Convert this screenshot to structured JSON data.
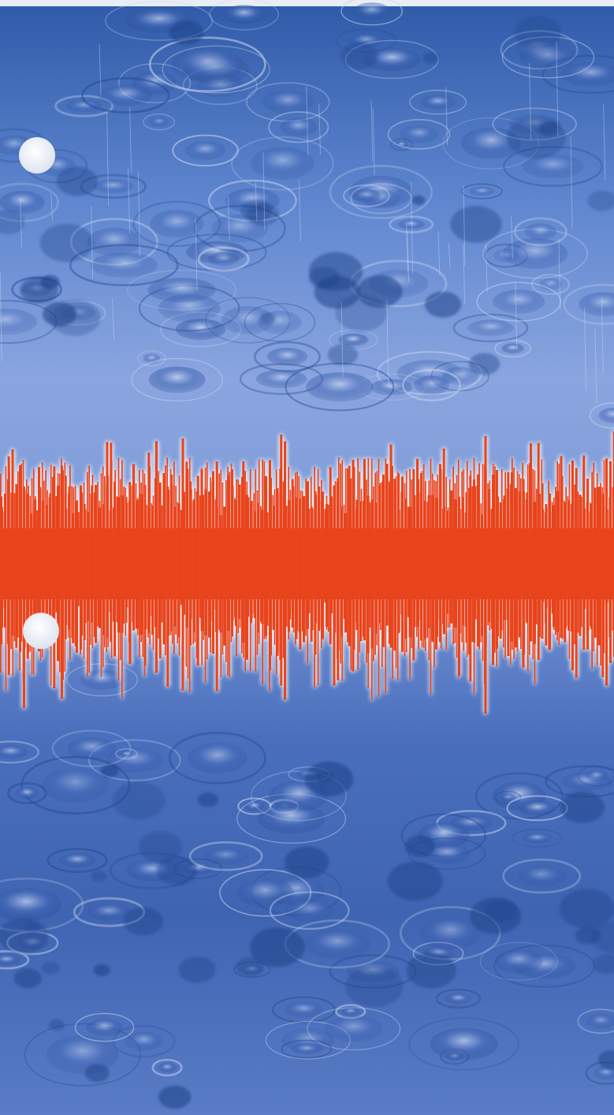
{
  "image": {
    "subject": "rain-on-water-with-sound-waveform",
    "colors": {
      "water_light": "#8fa6dc",
      "water_mid": "#5a79c4",
      "water_dark": "#2e4f98",
      "water_deep": "#1f3f86",
      "waveform": "#e8441c",
      "waveform_glow": "#ffffff",
      "top_edge": "#e9edf5",
      "punch_hole": "#f4f6fb"
    },
    "waveform_envelope": [
      0.7,
      0.92,
      0.55,
      0.88,
      0.4,
      0.62,
      0.48,
      0.72,
      0.58,
      0.45,
      0.66,
      0.52,
      0.74,
      0.6,
      0.85,
      0.5,
      0.68,
      0.95,
      0.57,
      0.8,
      0.46,
      0.63,
      0.71,
      0.54,
      0.88,
      0.49,
      0.66,
      0.59,
      0.77,
      0.44,
      0.69,
      0.58,
      0.82,
      0.53,
      0.64,
      0.73,
      0.47,
      0.9,
      0.56,
      0.67,
      0.51,
      0.79,
      0.62,
      0.55,
      0.86,
      0.48,
      0.7,
      0.6,
      0.75,
      0.52,
      0.65,
      0.93,
      0.57,
      0.68,
      0.5,
      0.81,
      0.61,
      0.54,
      0.87,
      0.46,
      0.72,
      0.59,
      0.78,
      0.53,
      0.66,
      0.84,
      0.49,
      0.71,
      0.58,
      0.63,
      0.55,
      0.89,
      0.62,
      0.5,
      0.76,
      0.57,
      0.69,
      0.91,
      0.52,
      0.74
    ]
  }
}
